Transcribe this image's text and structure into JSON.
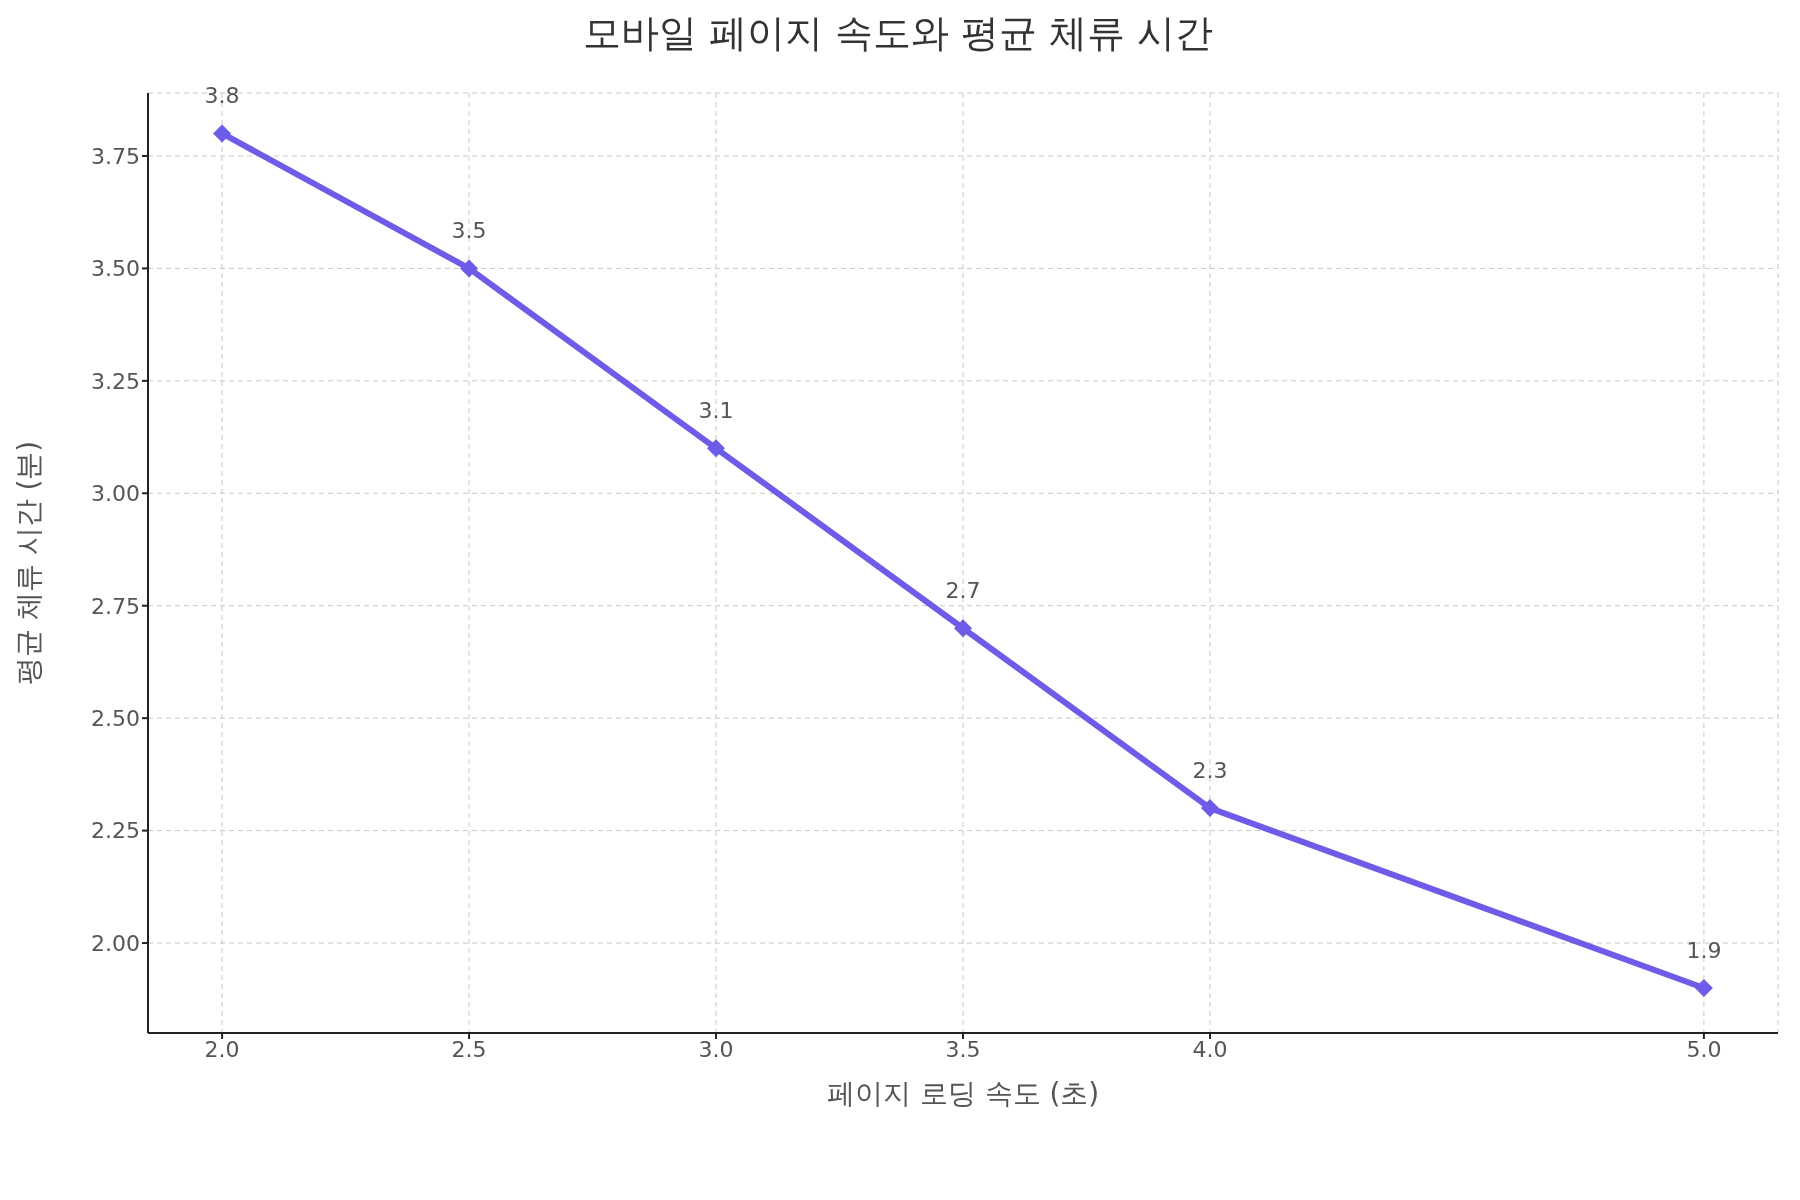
{
  "chart_data": {
    "type": "line",
    "title": "모바일 페이지 속도와 평균 체류 시간",
    "xlabel": "페이지 로딩 속도 (초)",
    "ylabel": "평균 체류 시간 (분)",
    "x": [
      2.0,
      2.5,
      3.0,
      3.5,
      4.0,
      5.0
    ],
    "series": [
      {
        "color": "#6c5ce7",
        "values": [
          3.8,
          3.5,
          3.1,
          2.7,
          2.3,
          1.9
        ]
      }
    ],
    "xlim": [
      1.85,
      5.15
    ],
    "ylim": [
      1.8,
      3.89
    ],
    "xticks": [
      {
        "value": 2,
        "label": "2.0"
      },
      {
        "value": 2.5,
        "label": "2.5"
      },
      {
        "value": 3,
        "label": "3.0"
      },
      {
        "value": 3.5,
        "label": "3.5"
      },
      {
        "value": 4,
        "label": "4.0"
      },
      {
        "value": 5,
        "label": "5.0"
      }
    ],
    "yticks": [
      {
        "value": 2,
        "label": "2.00"
      },
      {
        "value": 2.25,
        "label": "2.25"
      },
      {
        "value": 2.5,
        "label": "2.50"
      },
      {
        "value": 2.75,
        "label": "2.75"
      },
      {
        "value": 3,
        "label": "3.00"
      },
      {
        "value": 3.25,
        "label": "3.25"
      },
      {
        "value": 3.5,
        "label": "3.50"
      },
      {
        "value": 3.75,
        "label": "3.75"
      }
    ],
    "grid": true,
    "marker": "diamond",
    "line_style": "solid",
    "data_labels": true
  }
}
